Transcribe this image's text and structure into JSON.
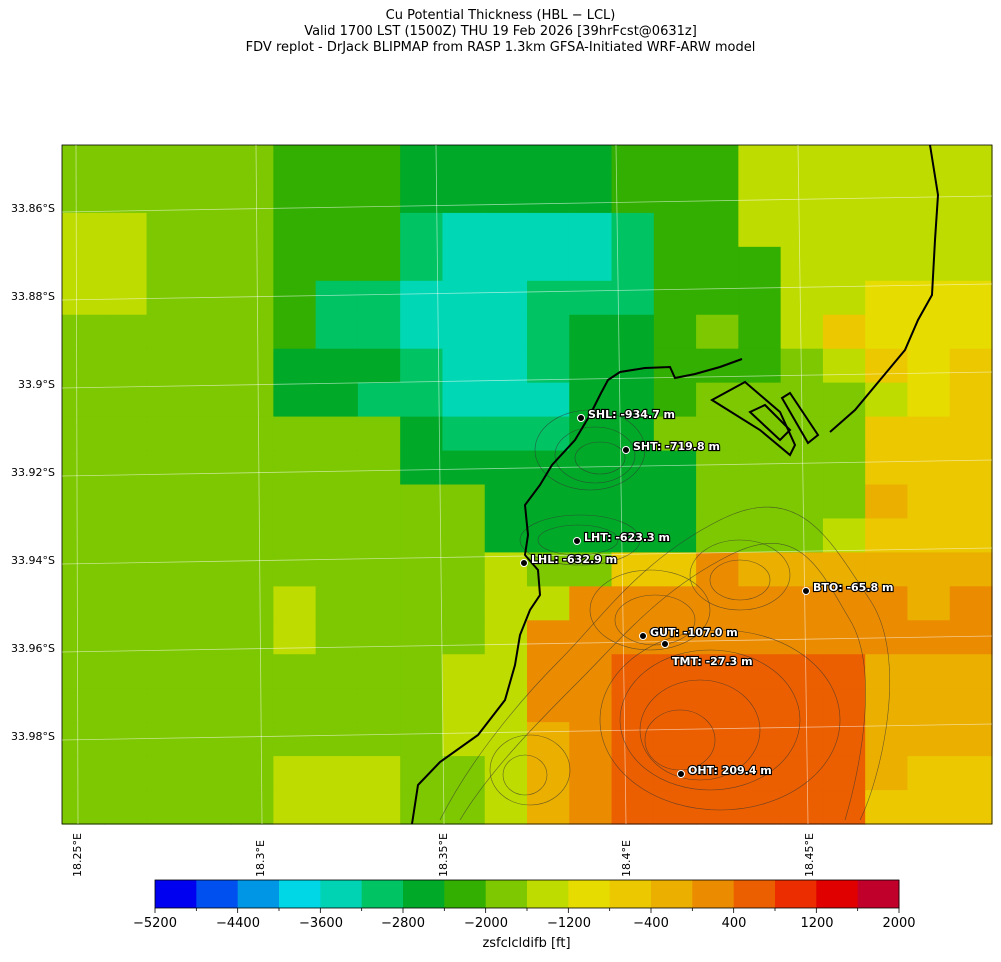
{
  "titles": {
    "line1": "Cu Potential Thickness (HBL − LCL)",
    "line2": "Valid 1700 LST (1500Z) THU 19 Feb 2026 [39hrFcst@0631z]",
    "line3": "FDV replot - DrJack BLIPMAP from RASP 1.3km GFSA-Initiated WRF-ARW model"
  },
  "axes": {
    "y_ticks": [
      "33.86°S",
      "33.88°S",
      "33.9°S",
      "33.92°S",
      "33.94°S",
      "33.96°S",
      "33.98°S"
    ],
    "x_ticks": [
      "18.25°E",
      "18.3°E",
      "18.35°E",
      "18.4°E",
      "18.45°E"
    ]
  },
  "stations": [
    {
      "label": "SHL: -934.7 m"
    },
    {
      "label": "SHT: -719.8 m"
    },
    {
      "label": "LHT: -623.3 m"
    },
    {
      "label": "LHL: -632.9 m"
    },
    {
      "label": "BTO: -65.8 m"
    },
    {
      "label": "GUT: -107.0 m"
    },
    {
      "label": "TMT: -27.3 m"
    },
    {
      "label": "OHT: 209.4 m"
    }
  ],
  "colorbar": {
    "title": "zsfclcldifb [ft]",
    "tick_labels": [
      "−5200",
      "−4400",
      "−3600",
      "−2800",
      "−2000",
      "−1200",
      "−400",
      "400",
      "1200",
      "2000"
    ],
    "colors": [
      "#0000f0",
      "#0050f0",
      "#0096e6",
      "#00d7e6",
      "#00d2b4",
      "#00c364",
      "#00aa28",
      "#32af00",
      "#7dc800",
      "#bedc00",
      "#e6dc00",
      "#ebc800",
      "#ebaf00",
      "#eb8c00",
      "#eb5f00",
      "#eb2d00",
      "#e00000",
      "#c0002a"
    ]
  },
  "grid_colors": {
    "palette": [
      "#7dc800",
      "#bedc00",
      "#32af00",
      "#00aa28",
      "#00c364",
      "#00d7b4",
      "#e6dc00",
      "#ebc800",
      "#ebaf00",
      "#eb8c00",
      "#eb5f00"
    ],
    "rows": [
      "0000022233333222111111",
      "0000022233333222111111",
      "1100022245555422111111",
      "1100022245555422211111",
      "1100024455544422211666",
      "0000024455543320217666",
      "0000033345543322201767",
      "0000033445553320000167",
      "0000000034443300000777",
      "0000000033333330000777",
      "0000000000333330000877",
      "0000000000333330001777",
      "0000000000100779888888",
      "0000010000119999999989",
      "0000010000199999999999",
      "0000000001199aaaaaa888",
      "0000000001199aaaaaa888",
      "0000000001189aaaaaa888",
      "0000011100189aaaaaa877",
      "0000011100189aaaaaa777"
    ]
  }
}
